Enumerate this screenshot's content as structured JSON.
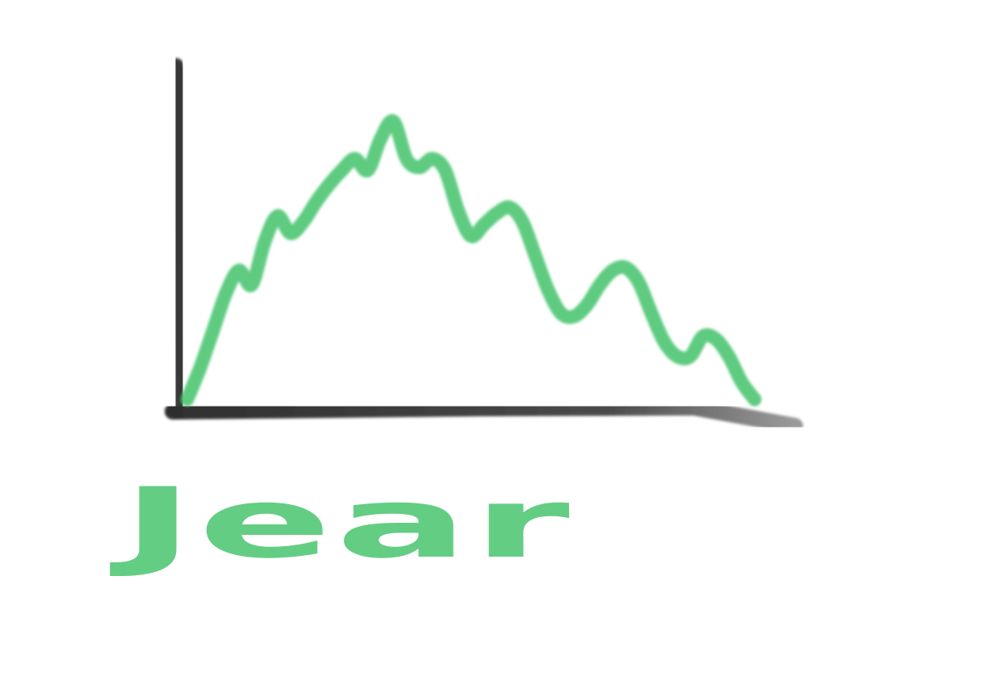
{
  "chart_data": {
    "type": "line",
    "title": "",
    "xlabel": "Jear",
    "ylabel": "",
    "grid": false,
    "legend": "none",
    "ylim": [
      0,
      1
    ],
    "colors": {
      "line": "#42c36a",
      "axis": "#3a3a3a",
      "label": "#42c36a"
    },
    "x": [
      0,
      1,
      2,
      3,
      4,
      5,
      6,
      7,
      8,
      9,
      10,
      11,
      12,
      13,
      14,
      15,
      16,
      17,
      18,
      19,
      20,
      21,
      22,
      23,
      24,
      25,
      26,
      27,
      28,
      29,
      30,
      31,
      32,
      33,
      34,
      35,
      36,
      37,
      38,
      39,
      40,
      41,
      42,
      43,
      44
    ],
    "series": [
      {
        "values": [
          0.0,
          0.11,
          0.24,
          0.37,
          0.45,
          0.4,
          0.55,
          0.64,
          0.58,
          0.62,
          0.69,
          0.75,
          0.8,
          0.84,
          0.8,
          0.91,
          0.97,
          0.84,
          0.81,
          0.84,
          0.8,
          0.66,
          0.57,
          0.61,
          0.65,
          0.67,
          0.62,
          0.5,
          0.38,
          0.3,
          0.29,
          0.33,
          0.4,
          0.45,
          0.46,
          0.41,
          0.3,
          0.2,
          0.15,
          0.15,
          0.22,
          0.21,
          0.15,
          0.06,
          0.0
        ]
      }
    ]
  }
}
